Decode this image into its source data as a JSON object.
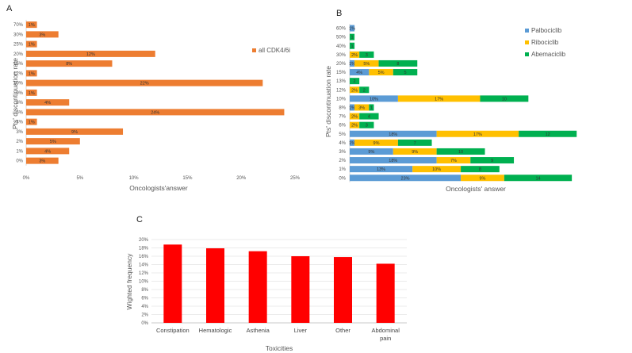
{
  "chart_data": [
    {
      "id": "A",
      "type": "bar",
      "orientation": "horizontal",
      "panel_label": "A",
      "xlabel": "Oncologists'answer",
      "ylabel": "Pts' discontinuation rate",
      "xlim": [
        0,
        25
      ],
      "xticks": [
        "0%",
        "5%",
        "10%",
        "15%",
        "20%",
        "25%"
      ],
      "categories": [
        "70%",
        "30%",
        "25%",
        "20%",
        "15%",
        "12%",
        "10%",
        "9%",
        "8%",
        "5%",
        "4%",
        "3%",
        "2%",
        "1%",
        "0%"
      ],
      "series": [
        {
          "name": "all CDK4/6i",
          "values": [
            1,
            3,
            1,
            12,
            8,
            1,
            22,
            1,
            4,
            24,
            1,
            9,
            5,
            4,
            3
          ],
          "labels": [
            "1%",
            "3%",
            "1%",
            "12%",
            "8%",
            "1%",
            "22%",
            "1%",
            "4%",
            "24%",
            "1%",
            "9%",
            "5%",
            "4%",
            "3%"
          ]
        }
      ],
      "legend": "right",
      "colors": {
        "bar": "#ED7D31"
      }
    },
    {
      "id": "B",
      "type": "bar",
      "orientation": "horizontal",
      "stacked": true,
      "panel_label": "B",
      "xlabel": "Oncologists' answer",
      "ylabel": "Pts' discontinuation rate",
      "categories": [
        "60%",
        "50%",
        "40%",
        "30%",
        "20%",
        "15%",
        "13%",
        "12%",
        "10%",
        "8%",
        "7%",
        "6%",
        "5%",
        "4%",
        "3%",
        "2%",
        "1%",
        "0%"
      ],
      "series": [
        {
          "name": "Palbociclib",
          "values": [
            1,
            0,
            0,
            0,
            1,
            4,
            0,
            0,
            10,
            1,
            0,
            0,
            18,
            1,
            9,
            18,
            13,
            23
          ],
          "labels": [
            "1%",
            "",
            "",
            "",
            "1%",
            "4%",
            "",
            "",
            "10%",
            "1%",
            "",
            "",
            "18%",
            "1%",
            "9%",
            "18%",
            "13%",
            "23%"
          ]
        },
        {
          "name": "Ribociclib",
          "values": [
            0,
            0,
            0,
            2,
            5,
            5,
            0,
            2,
            17,
            3,
            2,
            2,
            17,
            9,
            9,
            7,
            10,
            9
          ],
          "labels": [
            "",
            "",
            "",
            "2%",
            "5%",
            "5%",
            "",
            "2%",
            "17%",
            "3%",
            "2%",
            "2%",
            "17%",
            "9%",
            "9%",
            "7%",
            "10%",
            "9%"
          ]
        },
        {
          "name": "Abemaciclib",
          "values": [
            0,
            1,
            1,
            3,
            8,
            5,
            2,
            2,
            10,
            1,
            4,
            3,
            12,
            7,
            10,
            9,
            8,
            14
          ],
          "labels": [
            "",
            "1",
            "1",
            "3",
            "8",
            "5",
            "2",
            "2",
            "10",
            "1",
            "4",
            "3",
            "12",
            "7",
            "10",
            "9",
            "8",
            "14"
          ]
        }
      ],
      "legend": "top-right",
      "colors": {
        "Palbociclib": "#5B9BD5",
        "Ribociclib": "#FFC000",
        "Abemaciclib": "#00B050"
      }
    },
    {
      "id": "C",
      "type": "bar",
      "orientation": "vertical",
      "panel_label": "C",
      "xlabel": "Toxicities",
      "ylabel": "Wighted frequency",
      "ylim": [
        0,
        20
      ],
      "yticks": [
        "0%",
        "2%",
        "4%",
        "6%",
        "8%",
        "10%",
        "12%",
        "14%",
        "16%",
        "18%",
        "20%"
      ],
      "categories": [
        "Constipation",
        "Hematologic",
        "Asthenia",
        "Liver",
        "Other",
        "Abdominal pain"
      ],
      "category_lines": [
        [
          "Constipation"
        ],
        [
          "Hematologic"
        ],
        [
          "Asthenia"
        ],
        [
          "Liver"
        ],
        [
          "Other"
        ],
        [
          "Abdominal",
          "pain"
        ]
      ],
      "values": [
        18.8,
        17.9,
        17.2,
        16.0,
        15.8,
        14.2
      ],
      "grid": true,
      "colors": {
        "bar": "#FF0000"
      }
    }
  ]
}
